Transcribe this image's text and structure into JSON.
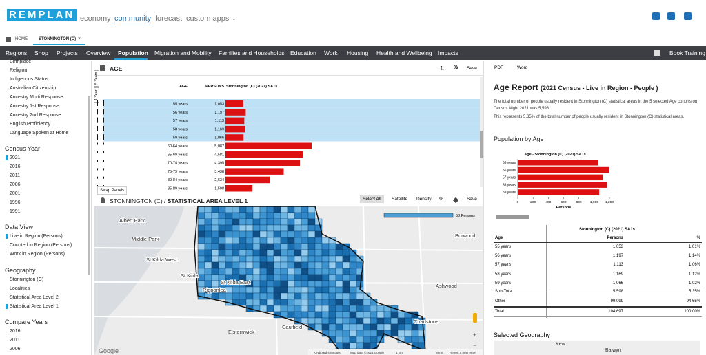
{
  "header": {
    "logo": "REMPLAN",
    "nav": [
      "economy",
      "community",
      "forecast",
      "custom apps"
    ]
  },
  "breadcrumb": [
    "HOME",
    "STONNINGTON (C)"
  ],
  "menu": [
    "Regions",
    "Shop",
    "Projects",
    "Overview",
    "Population",
    "Migration and Mobility",
    "Families and Households",
    "Education",
    "Work",
    "Housing",
    "Health and Wellbeing",
    "Impacts"
  ],
  "menu_right": "Book Training",
  "sidebar": {
    "topics": [
      "Birthplace",
      "Religion",
      "Indigenous Status",
      "Australian Citizenship",
      "Ancestry Multi Response",
      "Ancestry 1st Response",
      "Ancestry 2nd Response",
      "English Proficiency",
      "Language Spoken at Home"
    ],
    "sections": [
      {
        "title": "Census Year",
        "items": [
          "2021",
          "2016",
          "2011",
          "2006",
          "2001",
          "1996",
          "1991"
        ]
      },
      {
        "title": "Data View",
        "items": [
          "Live in Region (Persons)",
          "Counted in Region (Persons)",
          "Work in Region (Persons)"
        ]
      },
      {
        "title": "Geography",
        "items": [
          "Stonnington (C)",
          "Localities",
          "Statistical Area Level 2",
          "Statistical Area Level 1"
        ]
      },
      {
        "title": "Compare Years",
        "items": [
          "2016",
          "2011",
          "2006"
        ]
      }
    ]
  },
  "age_panel": {
    "title": "AGE",
    "actions": [
      "%",
      "Save"
    ],
    "columns": [
      "AGE",
      "PERSONS",
      "Stonnington (C) (2021) SA1s"
    ],
    "toggles": [
      "5 Years",
      "1 Year"
    ],
    "swap": "Swap Panels",
    "bar_color": "#dd1111",
    "selected_color": "#bfe1f5",
    "rows": [
      {
        "age": "55 years",
        "persons": 1053,
        "persons_label": "1,053",
        "selected": true
      },
      {
        "age": "56 years",
        "persons": 1197,
        "persons_label": "1,197",
        "selected": true
      },
      {
        "age": "57 years",
        "persons": 1113,
        "persons_label": "1,113",
        "selected": true
      },
      {
        "age": "58 years",
        "persons": 1169,
        "persons_label": "1,169",
        "selected": true
      },
      {
        "age": "59 years",
        "persons": 1066,
        "persons_label": "1,066",
        "selected": true
      },
      {
        "age": "60-64 years",
        "persons": 5087,
        "persons_label": "5,087",
        "selected": false
      },
      {
        "age": "65-69 years",
        "persons": 4581,
        "persons_label": "4,581",
        "selected": false
      },
      {
        "age": "70-74 years",
        "persons": 4395,
        "persons_label": "4,395",
        "selected": false
      },
      {
        "age": "75-79 years",
        "persons": 3438,
        "persons_label": "3,438",
        "selected": false
      },
      {
        "age": "80-84 years",
        "persons": 2634,
        "persons_label": "2,634",
        "selected": false
      },
      {
        "age": "85-89 years",
        "persons": 1598,
        "persons_label": "1,598",
        "selected": false
      }
    ]
  },
  "map_panel": {
    "title_region": "STONNINGTON (C) / ",
    "title_level": "STATISTICAL AREA LEVEL 1",
    "buttons": [
      "Select All",
      "Satellite",
      "Density",
      "%",
      "Save"
    ],
    "legend_max": "58 Persons",
    "places": [
      "Albert Park",
      "Middle Park",
      "St Kilda West",
      "St Kilda",
      "St Kilda East",
      "Ripponlea",
      "Elsternwick",
      "Caulfield",
      "Chadstone",
      "Ashwood",
      "Burwood"
    ],
    "google": "Google",
    "footer": [
      "Keyboard shortcuts",
      "Map data ©2025 Google",
      "1 km",
      "Terms",
      "Report a map error"
    ]
  },
  "report": {
    "exports": [
      "PDF",
      "Word"
    ],
    "title": "Age Report",
    "subtitle": "(2021 Census - Live in Region - People )",
    "paragraphs": [
      "The total number of people usually resident in Stonnington (C) statistical areas in the 5 selected Age cohorts on Census Night 2021 was 5,598.",
      "This represents 5.35% of the total number of  people usually resident in Stonnington (C) statistical areas."
    ],
    "section": "Population by Age",
    "chart": {
      "type": "bar",
      "orientation": "horizontal",
      "title": "Age - Stonnington (C) (2021) SA1s",
      "categories": [
        "55 years",
        "56 years",
        "57 years",
        "58 years",
        "59 years"
      ],
      "values": [
        1053,
        1197,
        1113,
        1169,
        1066
      ],
      "color": "#dd1111",
      "xlim": [
        0,
        1200
      ],
      "xticks": [
        0,
        200,
        400,
        600,
        800,
        {
          "value": 1000,
          "label": "1,000"
        },
        {
          "value": 1200,
          "label": "1,200"
        }
      ],
      "xlabel": "Persons"
    },
    "table": {
      "header": "Stonnington (C) (2021) SA1s",
      "columns": [
        "Age",
        "Persons",
        "%"
      ],
      "rows": [
        [
          "55 years",
          "1,053",
          "1.01%"
        ],
        [
          "56 years",
          "1,197",
          "1.14%"
        ],
        [
          "57 years",
          "1,113",
          "1.06%"
        ],
        [
          "58 years",
          "1,169",
          "1.12%"
        ],
        [
          "59 years",
          "1,066",
          "1.02%"
        ]
      ],
      "summary": [
        [
          "Sub-Total",
          "5,598",
          "5.35%"
        ],
        [
          "Other",
          "99,099",
          "94.65%"
        ],
        [
          "Total",
          "104,697",
          "100.00%"
        ]
      ]
    },
    "geo_title": "Selected Geography",
    "geo_places": [
      "Kew",
      "Balwyn"
    ]
  }
}
